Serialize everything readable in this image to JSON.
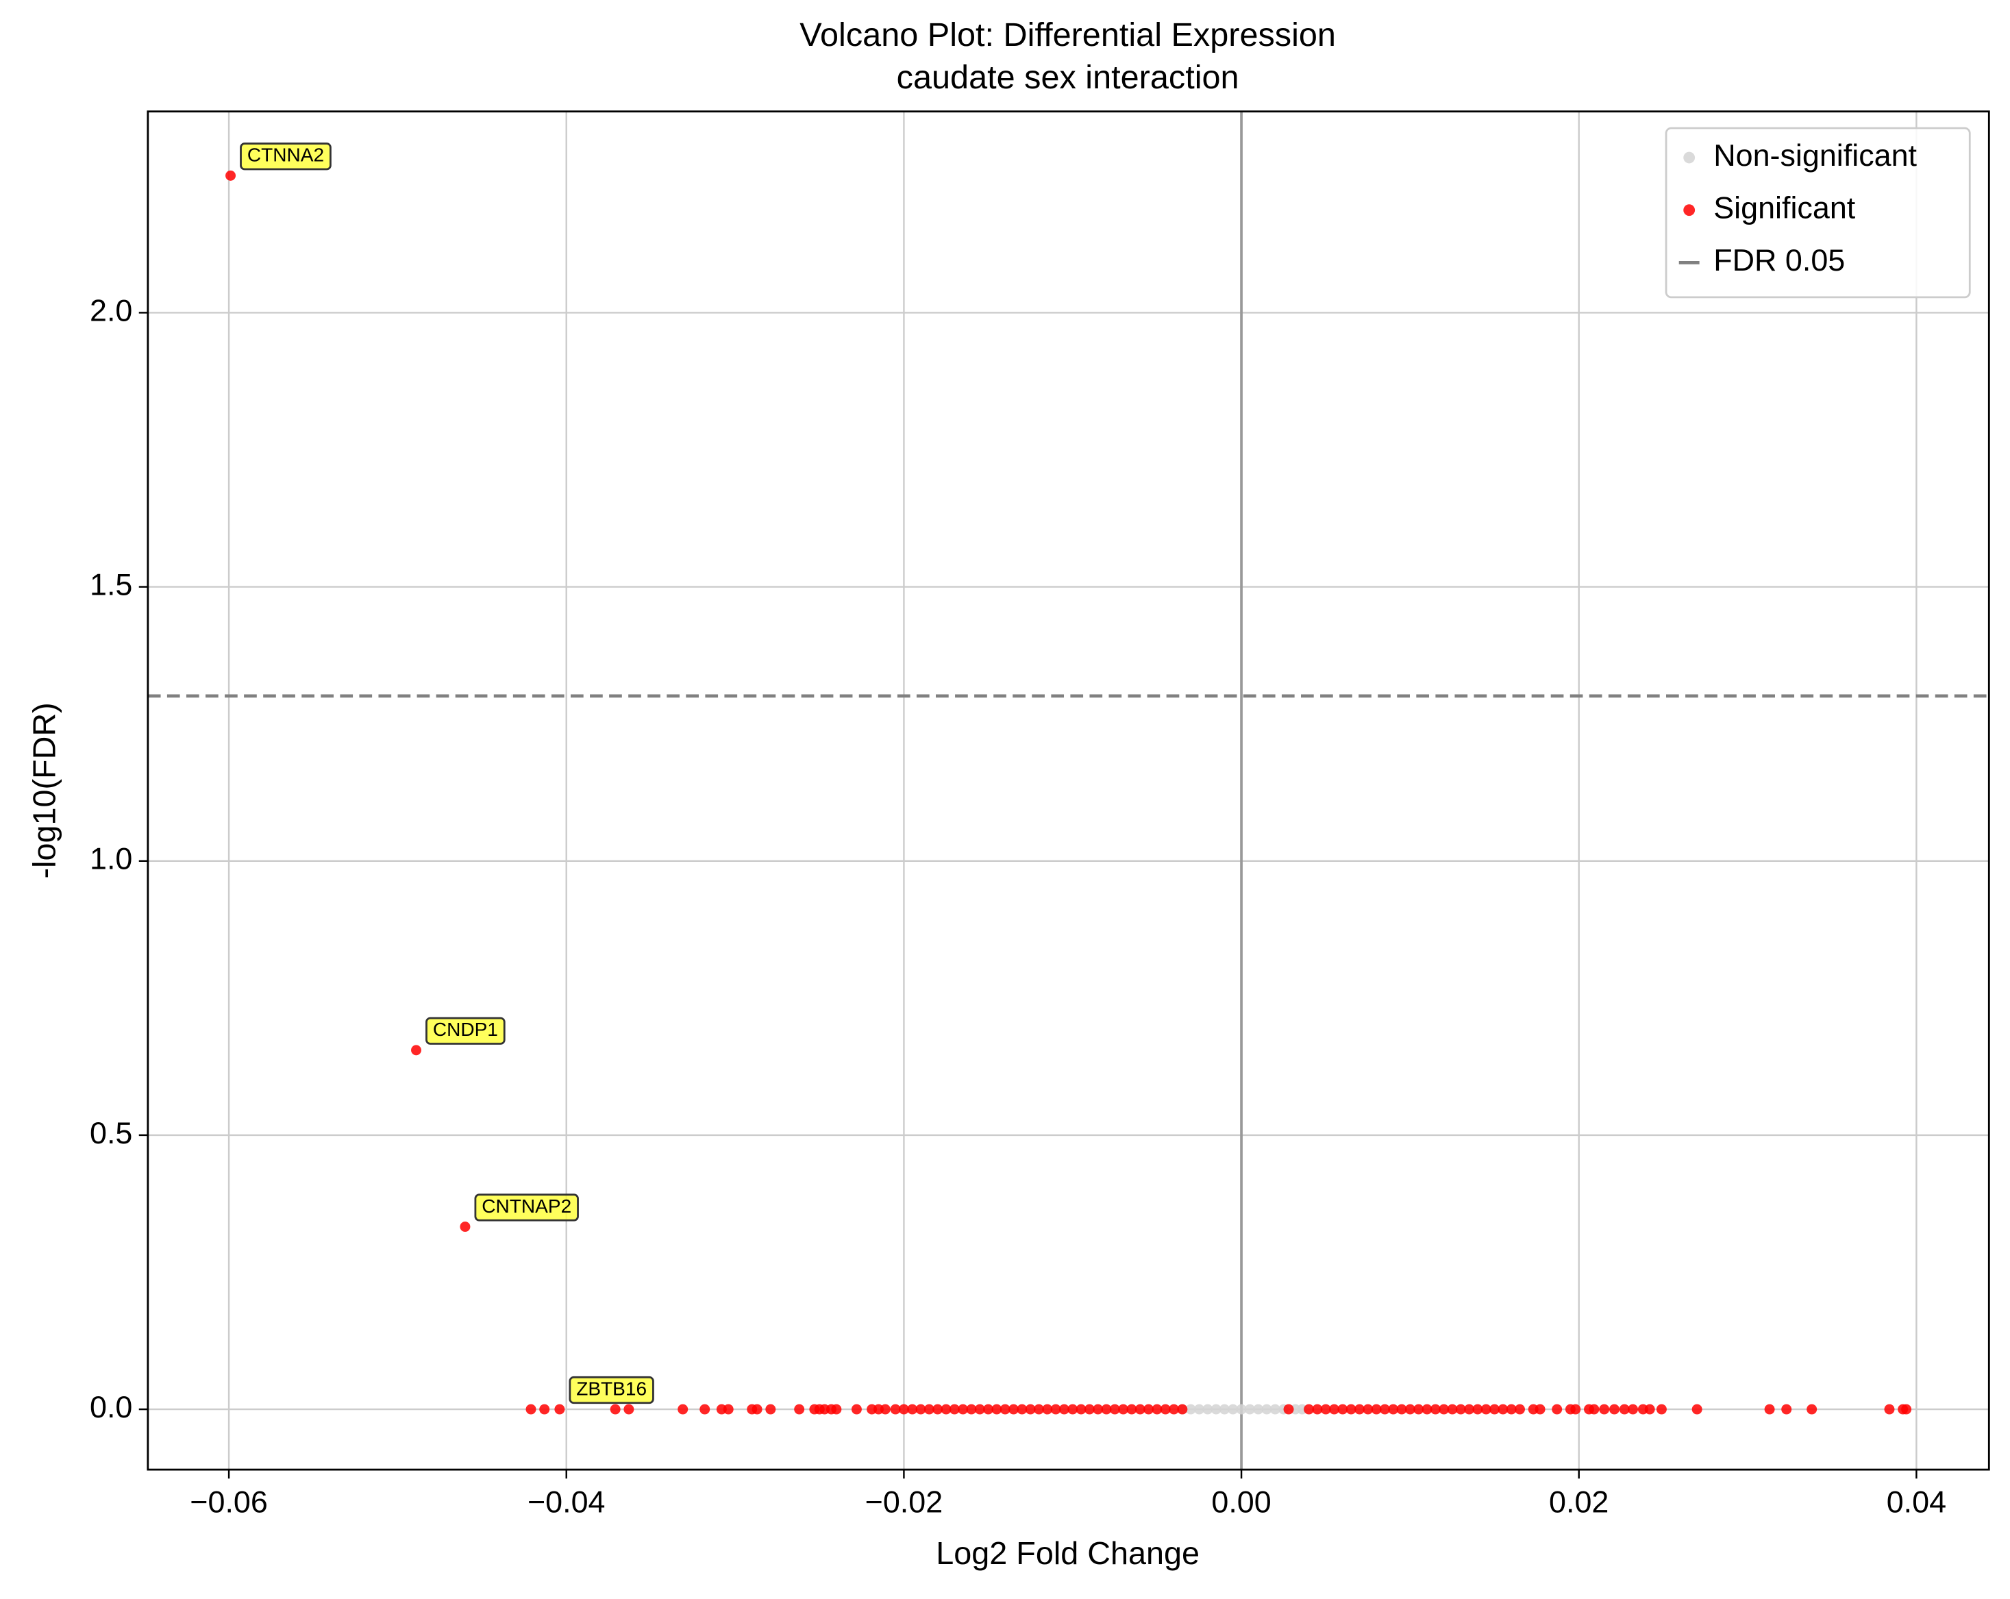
{
  "chart_data": {
    "type": "scatter",
    "title": "Volcano Plot: Differential Expression",
    "subtitle": "caudate sex interaction",
    "xlabel": "Log2 Fold Change",
    "ylabel": "-log10(FDR)",
    "xlim": [
      -0.0648,
      0.0443
    ],
    "ylim": [
      -0.11,
      2.367
    ],
    "xticks": [
      {
        "value": -0.06,
        "label": "−0.06"
      },
      {
        "value": -0.04,
        "label": "−0.04"
      },
      {
        "value": -0.02,
        "label": "−0.02"
      },
      {
        "value": 0,
        "label": "0.00"
      },
      0.02,
      0.04
    ],
    "yticks": [
      {
        "value": 0,
        "label": "0.0"
      },
      0.5,
      {
        "value": 1,
        "label": "1.0"
      },
      1.5,
      {
        "value": 2,
        "label": "2.0"
      }
    ],
    "grid": true,
    "legend": "upper right",
    "vline": 0,
    "hline": {
      "y": 1.301,
      "name": "FDR 0.05",
      "color": "#808080"
    },
    "series": [
      {
        "name": "Non-significant",
        "color": "#d3d3d3",
        "x": [
          -0.0035,
          -0.003,
          -0.0025,
          -0.002,
          -0.0015,
          -0.001,
          -0.0005,
          0,
          0.0005,
          0.001,
          0.0015,
          0.002,
          0.0025,
          0.0032,
          0.0036
        ],
        "values": [
          0,
          0,
          0,
          0,
          0,
          0,
          0,
          0,
          0,
          0,
          0,
          0,
          0,
          0,
          0
        ]
      },
      {
        "name": "Significant",
        "color": "#ff0000",
        "x": [
          -0.0599,
          -0.0489,
          -0.046,
          -0.0421,
          -0.0413,
          -0.0404,
          -0.0371,
          -0.0363,
          -0.0331,
          -0.0318,
          -0.0308,
          -0.0304,
          -0.029,
          -0.0287,
          -0.0279,
          -0.0262,
          -0.0253,
          -0.025,
          -0.0247,
          -0.0243,
          -0.024,
          -0.0228,
          -0.0219,
          -0.0215,
          -0.0211,
          -0.0205,
          -0.02,
          -0.0195,
          -0.019,
          -0.0185,
          -0.018,
          -0.0175,
          -0.017,
          -0.0165,
          -0.016,
          -0.0155,
          -0.015,
          -0.0145,
          -0.014,
          -0.0135,
          -0.013,
          -0.0125,
          -0.012,
          -0.0115,
          -0.011,
          -0.0105,
          -0.01,
          -0.0095,
          -0.009,
          -0.0085,
          -0.008,
          -0.0075,
          -0.007,
          -0.0065,
          -0.006,
          -0.0055,
          -0.005,
          -0.0045,
          -0.004,
          -0.0035,
          0.0028,
          0.004,
          0.0045,
          0.005,
          0.0055,
          0.006,
          0.0065,
          0.007,
          0.0075,
          0.008,
          0.0085,
          0.009,
          0.0095,
          0.01,
          0.0105,
          0.011,
          0.0115,
          0.012,
          0.0125,
          0.013,
          0.0135,
          0.014,
          0.0145,
          0.015,
          0.0155,
          0.016,
          0.0165,
          0.0173,
          0.0177,
          0.0187,
          0.0195,
          0.0198,
          0.0206,
          0.0209,
          0.0215,
          0.0221,
          0.0227,
          0.0232,
          0.0238,
          0.0242,
          0.0249,
          0.027,
          0.0313,
          0.0323,
          0.0338,
          0.0384,
          0.0392,
          0.0394
        ],
        "values": [
          2.25,
          0.655,
          0.333,
          0,
          0,
          0,
          0,
          0,
          0,
          0,
          0,
          0,
          0,
          0,
          0,
          0,
          0,
          0,
          0,
          0,
          0,
          0,
          0,
          0,
          0,
          0,
          0,
          0,
          0,
          0,
          0,
          0,
          0,
          0,
          0,
          0,
          0,
          0,
          0,
          0,
          0,
          0,
          0,
          0,
          0,
          0,
          0,
          0,
          0,
          0,
          0,
          0,
          0,
          0,
          0,
          0,
          0,
          0,
          0,
          0,
          0,
          0,
          0,
          0,
          0,
          0,
          0,
          0,
          0,
          0,
          0,
          0,
          0,
          0,
          0,
          0,
          0,
          0,
          0,
          0,
          0,
          0,
          0,
          0,
          0,
          0,
          0,
          0,
          0,
          0,
          0,
          0,
          0,
          0,
          0,
          0,
          0,
          0,
          0,
          0,
          0,
          0,
          0,
          0,
          0,
          0,
          0,
          0
        ]
      }
    ],
    "annotations": [
      {
        "text": "CTNNA2",
        "x": -0.0599,
        "y": 2.25
      },
      {
        "text": "CNDP1",
        "x": -0.0489,
        "y": 0.655
      },
      {
        "text": "CNTNAP2",
        "x": -0.046,
        "y": 0.333
      },
      {
        "text": "ZBTB16",
        "x": -0.0404,
        "y": 0
      }
    ]
  }
}
